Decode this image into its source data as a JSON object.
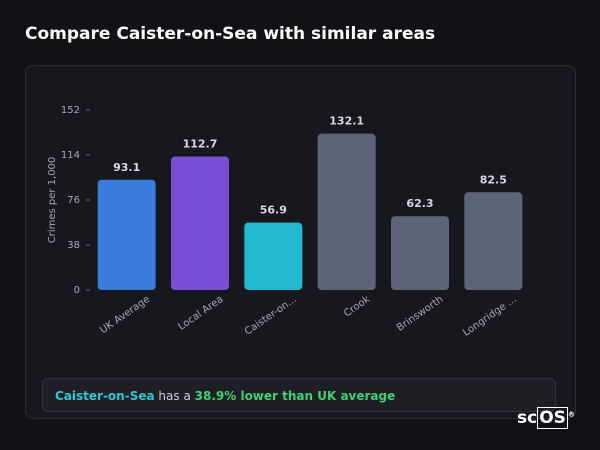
{
  "header": {
    "title": "Compare Caister-on-Sea with similar areas"
  },
  "chart_data": {
    "type": "bar",
    "y_label": "Crimes per 1,000",
    "categories": [
      "UK Average",
      "Local Area",
      "Caister-on...",
      "Crook",
      "Brinsworth",
      "Longridge ..."
    ],
    "values": [
      93.1,
      112.7,
      56.9,
      132.1,
      62.3,
      82.5
    ],
    "colors": [
      "#3a7bdc",
      "#7a4fd8",
      "#22b9d0",
      "#5c6577",
      "#5c6577",
      "#5c6577"
    ],
    "ylim": [
      0,
      152
    ],
    "yticks": [
      0,
      38,
      76,
      114,
      152
    ],
    "grid": false
  },
  "summary": {
    "area": "Caister-on-Sea",
    "connector": "has a",
    "result": "38.9% lower than UK average"
  },
  "logo": {
    "text_a": "sc",
    "text_b": "OS",
    "mark": "®"
  }
}
